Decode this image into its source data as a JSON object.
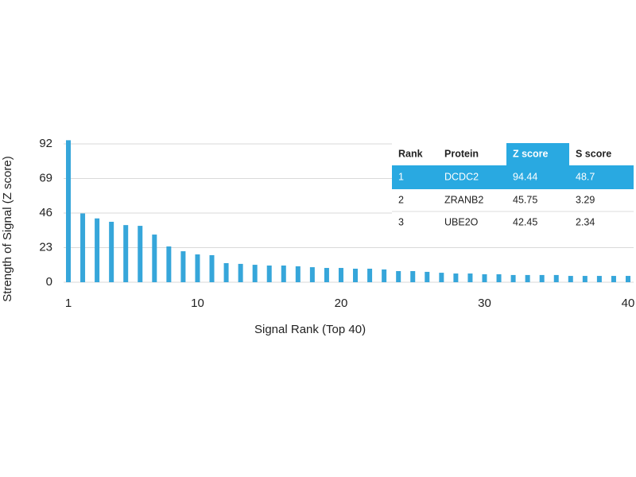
{
  "chart_data": {
    "type": "bar",
    "x_label": "Signal Rank (Top 40)",
    "y_label": "Strength of Signal (Z score)",
    "x": [
      1,
      2,
      3,
      4,
      5,
      6,
      7,
      8,
      9,
      10,
      11,
      12,
      13,
      14,
      15,
      16,
      17,
      18,
      19,
      20,
      21,
      22,
      23,
      24,
      25,
      26,
      27,
      28,
      29,
      30,
      31,
      32,
      33,
      34,
      35,
      36,
      37,
      38,
      39,
      40
    ],
    "values": [
      94.44,
      45.75,
      42.45,
      40.2,
      38,
      37.5,
      31.7,
      23.8,
      20.6,
      18.5,
      18,
      12.7,
      12.2,
      11.6,
      11.1,
      11.1,
      10.6,
      10,
      9.5,
      9.5,
      9,
      9,
      8.5,
      7.4,
      7.4,
      6.9,
      6.3,
      5.8,
      5.8,
      5.3,
      5.3,
      4.8,
      4.8,
      4.8,
      4.8,
      4.2,
      4.2,
      4.2,
      4.2,
      4.2
    ],
    "color": "#36a6da",
    "xlim": [
      1,
      40
    ],
    "xticks": [
      1,
      10,
      20,
      30,
      40
    ],
    "ylim": [
      0,
      92
    ],
    "yticks": [
      0,
      23,
      46,
      69,
      92
    ],
    "grid": true
  },
  "table": {
    "columns": [
      "Rank",
      "Protein",
      "Z score",
      "S score"
    ],
    "rows": [
      [
        1,
        "DCDC2",
        94.44,
        48.7
      ],
      [
        2,
        "ZRANB2",
        45.75,
        3.29
      ],
      [
        3,
        "UBE2O",
        42.45,
        2.34
      ]
    ]
  }
}
